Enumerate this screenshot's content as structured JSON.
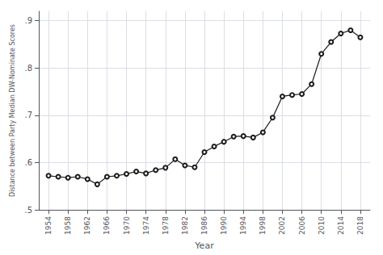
{
  "chart_data": {
    "type": "line",
    "xlabel": "Year",
    "ylabel": "Distance between Party Median DW-Nominate Scores",
    "x": [
      1954,
      1956,
      1958,
      1960,
      1962,
      1964,
      1966,
      1968,
      1970,
      1972,
      1974,
      1976,
      1978,
      1980,
      1982,
      1984,
      1986,
      1988,
      1990,
      1992,
      1994,
      1996,
      1998,
      2000,
      2002,
      2004,
      2006,
      2008,
      2010,
      2012,
      2014,
      2016,
      2018
    ],
    "values": [
      0.572,
      0.57,
      0.568,
      0.57,
      0.565,
      0.554,
      0.57,
      0.572,
      0.576,
      0.581,
      0.577,
      0.584,
      0.589,
      0.607,
      0.594,
      0.59,
      0.622,
      0.634,
      0.644,
      0.655,
      0.656,
      0.653,
      0.664,
      0.695,
      0.74,
      0.743,
      0.745,
      0.766,
      0.83,
      0.855,
      0.873,
      0.88,
      0.865
    ],
    "xlim": [
      1952,
      2020
    ],
    "ylim": [
      0.5,
      0.92
    ],
    "xticks": [
      1954,
      1958,
      1962,
      1966,
      1970,
      1974,
      1978,
      1982,
      1986,
      1990,
      1994,
      1998,
      2002,
      2006,
      2010,
      2014,
      2018
    ],
    "yticks": [
      {
        "value": 0.5,
        "label": ".5"
      },
      {
        "value": 0.6,
        "label": ".6"
      },
      {
        "value": 0.7,
        "label": ".7"
      },
      {
        "value": 0.8,
        "label": ".8"
      },
      {
        "value": 0.9,
        "label": ".9"
      }
    ],
    "color": "#1a1a1a",
    "marker": "circle",
    "grid": true
  }
}
